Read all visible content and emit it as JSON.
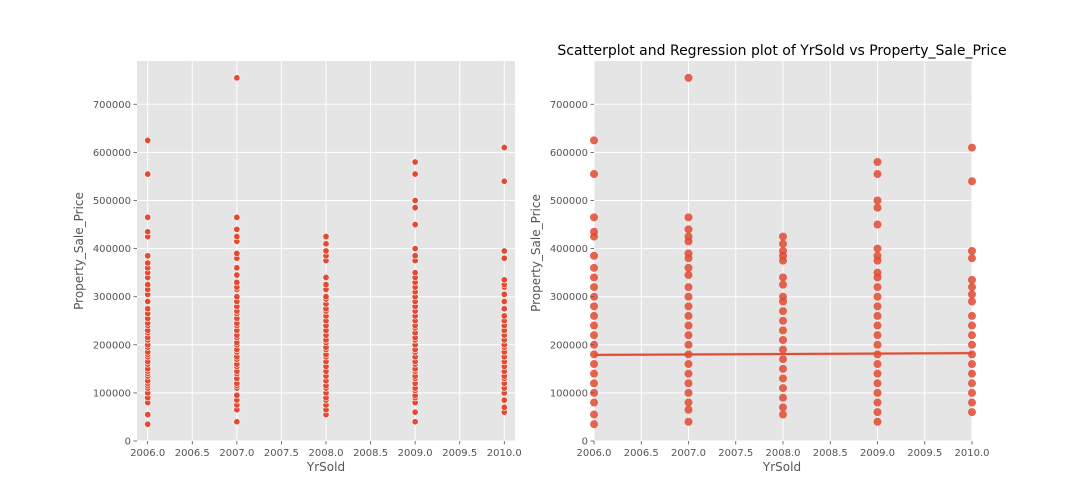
{
  "chart_data": [
    {
      "type": "scatter",
      "title": "",
      "xlabel": "YrSold",
      "ylabel": "Property_Sale_Price",
      "xlim": [
        2005.88,
        2010.12
      ],
      "ylim": [
        0,
        790000
      ],
      "xticks": [
        "2006.0",
        "2006.5",
        "2007.0",
        "2007.5",
        "2008.0",
        "2008.5",
        "2009.0",
        "2009.5",
        "2010.0"
      ],
      "yticks": [
        "0",
        "100000",
        "200000",
        "300000",
        "400000",
        "500000",
        "600000",
        "700000"
      ],
      "grid": true,
      "marker_color": "#e24a33",
      "series": [
        {
          "points": {
            "2006": [
              35000,
              55000,
              80000,
              90000,
              100000,
              110000,
              115000,
              120000,
              125000,
              135000,
              140000,
              145000,
              150000,
              160000,
              165000,
              175000,
              180000,
              185000,
              195000,
              200000,
              210000,
              215000,
              225000,
              230000,
              240000,
              245000,
              255000,
              265000,
              275000,
              290000,
              305000,
              315000,
              325000,
              340000,
              350000,
              360000,
              370000,
              385000,
              425000,
              435000,
              465000,
              555000,
              625000
            ],
            "2007": [
              40000,
              65000,
              75000,
              85000,
              95000,
              110000,
              115000,
              120000,
              130000,
              140000,
              145000,
              155000,
              160000,
              170000,
              175000,
              185000,
              190000,
              200000,
              205000,
              215000,
              220000,
              230000,
              240000,
              245000,
              255000,
              265000,
              270000,
              280000,
              290000,
              300000,
              315000,
              320000,
              330000,
              345000,
              360000,
              380000,
              390000,
              415000,
              425000,
              440000,
              465000,
              755000
            ],
            "2008": [
              55000,
              65000,
              75000,
              85000,
              90000,
              100000,
              110000,
              115000,
              125000,
              135000,
              145000,
              155000,
              165000,
              175000,
              180000,
              190000,
              195000,
              205000,
              210000,
              220000,
              230000,
              240000,
              250000,
              260000,
              270000,
              275000,
              285000,
              295000,
              300000,
              315000,
              325000,
              340000,
              375000,
              385000,
              395000,
              410000,
              425000
            ],
            "2009": [
              40000,
              60000,
              80000,
              90000,
              95000,
              105000,
              110000,
              120000,
              130000,
              135000,
              145000,
              150000,
              160000,
              165000,
              175000,
              185000,
              190000,
              200000,
              210000,
              215000,
              225000,
              235000,
              240000,
              250000,
              260000,
              270000,
              280000,
              290000,
              300000,
              310000,
              320000,
              330000,
              340000,
              350000,
              375000,
              385000,
              400000,
              450000,
              485000,
              500000,
              555000,
              580000
            ],
            "2010": [
              60000,
              70000,
              85000,
              100000,
              110000,
              120000,
              130000,
              135000,
              145000,
              155000,
              165000,
              175000,
              185000,
              195000,
              200000,
              210000,
              220000,
              230000,
              240000,
              250000,
              260000,
              275000,
              290000,
              305000,
              320000,
              325000,
              335000,
              380000,
              395000,
              540000,
              610000
            ]
          }
        }
      ]
    },
    {
      "type": "scatter",
      "title": "Scatterplot and Regression plot of YrSold vs Property_Sale_Price",
      "xlabel": "YrSold",
      "ylabel": "Property_Sale_Price",
      "xlim": [
        2006.0,
        2010.0
      ],
      "ylim": [
        0,
        790000
      ],
      "xticks": [
        "2006.0",
        "2006.5",
        "2007.0",
        "2007.5",
        "2008.0",
        "2008.5",
        "2009.0",
        "2009.5",
        "2010.0"
      ],
      "yticks": [
        "0",
        "100000",
        "200000",
        "300000",
        "400000",
        "500000",
        "600000",
        "700000"
      ],
      "grid": true,
      "marker_color": "#e24a33",
      "regression": {
        "intercept_2006": 179000,
        "slope_per_year": 900
      },
      "series": [
        {
          "points": {
            "2006": [
              35000,
              55000,
              80000,
              100000,
              120000,
              140000,
              160000,
              180000,
              200000,
              220000,
              240000,
              260000,
              280000,
              300000,
              320000,
              340000,
              360000,
              385000,
              425000,
              435000,
              465000,
              555000,
              625000
            ],
            "2007": [
              40000,
              65000,
              80000,
              100000,
              120000,
              140000,
              160000,
              180000,
              200000,
              220000,
              240000,
              260000,
              280000,
              300000,
              320000,
              345000,
              360000,
              380000,
              390000,
              415000,
              425000,
              440000,
              465000,
              755000
            ],
            "2008": [
              55000,
              70000,
              90000,
              110000,
              130000,
              150000,
              170000,
              190000,
              210000,
              230000,
              250000,
              270000,
              290000,
              300000,
              325000,
              340000,
              375000,
              385000,
              395000,
              410000,
              425000
            ],
            "2009": [
              40000,
              60000,
              80000,
              100000,
              120000,
              140000,
              160000,
              180000,
              200000,
              220000,
              240000,
              260000,
              280000,
              300000,
              320000,
              340000,
              350000,
              375000,
              385000,
              400000,
              450000,
              485000,
              500000,
              555000,
              580000
            ],
            "2010": [
              60000,
              80000,
              100000,
              120000,
              140000,
              160000,
              180000,
              200000,
              220000,
              240000,
              260000,
              290000,
              305000,
              320000,
              335000,
              380000,
              395000,
              540000,
              610000
            ]
          }
        }
      ]
    }
  ]
}
